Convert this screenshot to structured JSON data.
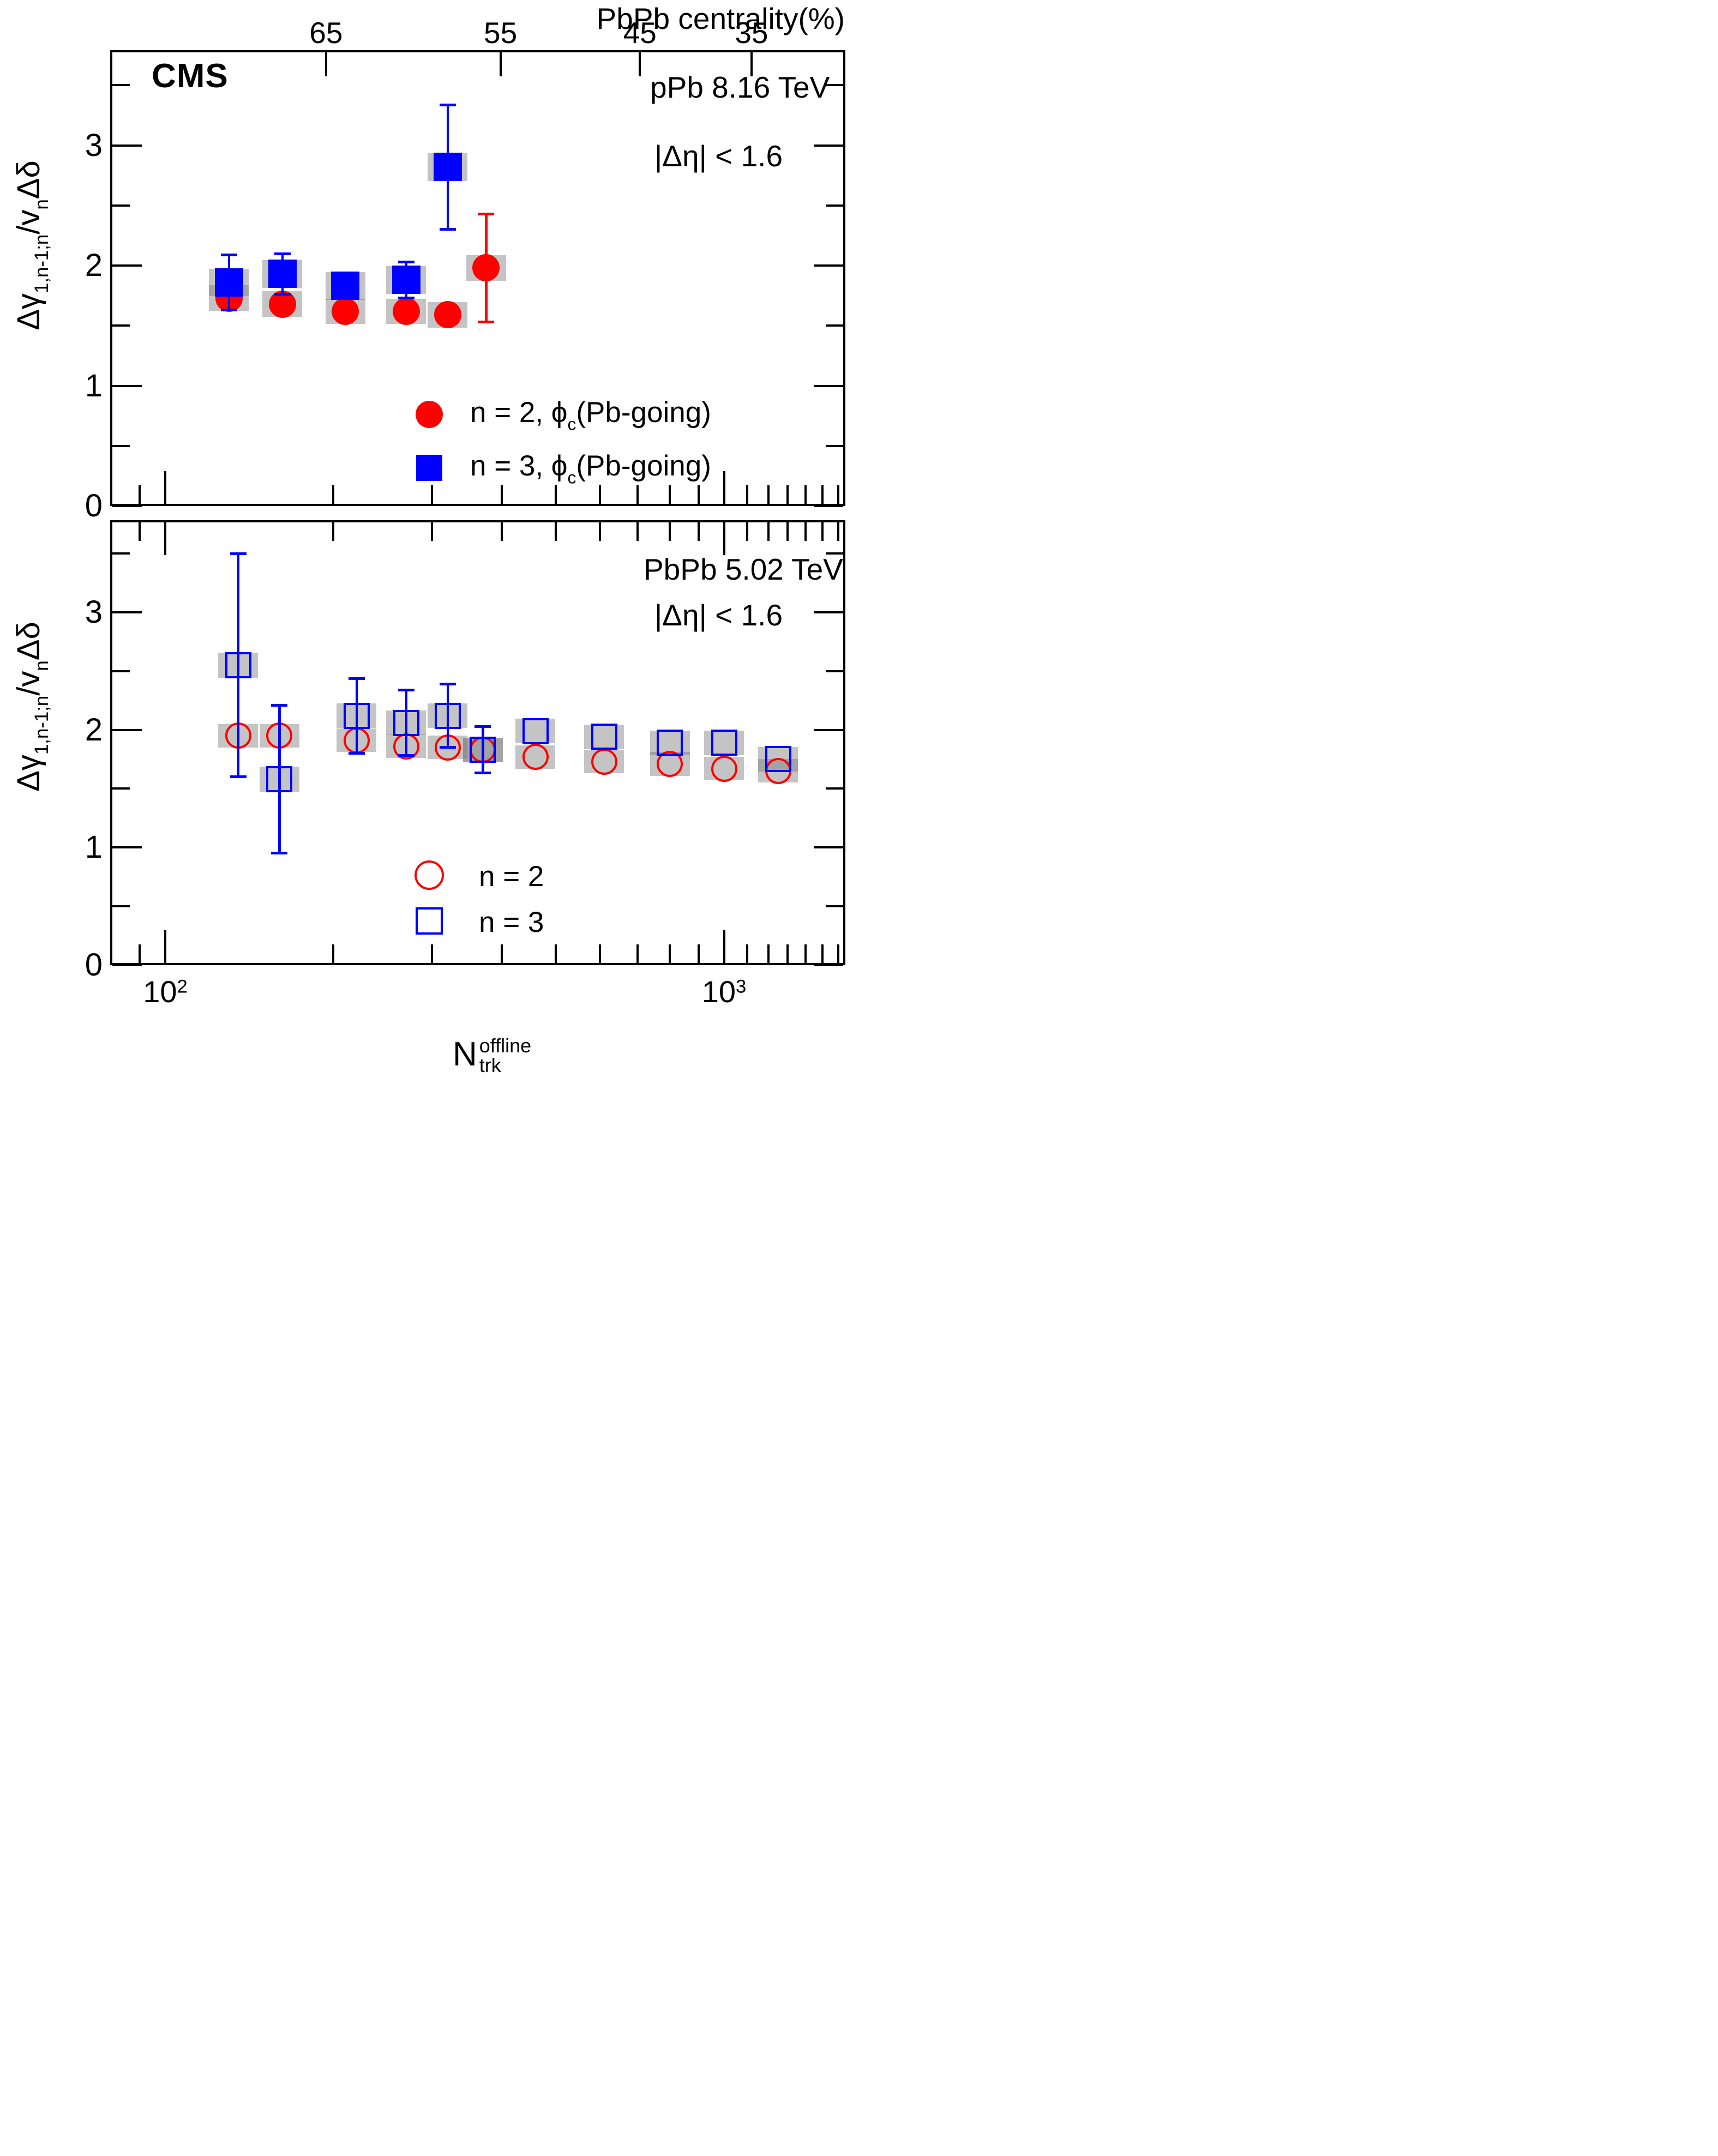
{
  "branding": {
    "experiment_label": "CMS"
  },
  "top_axis": {
    "title": "PbPb centrality(%)",
    "ticks": [
      {
        "label": "65",
        "n": 194
      },
      {
        "label": "55",
        "n": 398
      },
      {
        "label": "45",
        "n": 707
      },
      {
        "label": "35",
        "n": 1120
      }
    ]
  },
  "x_axis": {
    "title_base": "N",
    "title_sup": "offline",
    "title_sub": "trk",
    "major_ticks": [
      {
        "n": 100,
        "base": "10",
        "exp": "2"
      },
      {
        "n": 1000,
        "base": "10",
        "exp": "3"
      }
    ],
    "minor_ticks": [
      90,
      200,
      300,
      400,
      500,
      600,
      700,
      800,
      900,
      1100,
      1200,
      1300,
      1400,
      1500,
      1600
    ]
  },
  "y_axis": {
    "title_parts": {
      "p1": "Δγ",
      "sub1": "1,n-1;n",
      "p2": "/v",
      "sub2": "n",
      "p3": "Δδ"
    },
    "major_ticks": [
      0,
      1,
      2,
      3
    ],
    "minor_ticks": [
      0.5,
      1.5,
      2.5,
      3.5
    ]
  },
  "panels": [
    {
      "id": "ppb",
      "energy_label": "pPb 8.16 TeV",
      "eta_label": "|Δη| < 1.6",
      "legend": [
        {
          "marker": "circle",
          "filled": true,
          "color": "#ff0000",
          "text_pre": "n = 2, ϕ",
          "text_sub": "c",
          "text_post": "(Pb-going)"
        },
        {
          "marker": "square",
          "filled": true,
          "color": "#0000ff",
          "text_pre": "n = 3, ϕ",
          "text_sub": "c",
          "text_post": "(Pb-going)"
        }
      ]
    },
    {
      "id": "pbpb",
      "energy_label": "PbPb 5.02 TeV",
      "eta_label": "|Δη| < 1.6",
      "legend": [
        {
          "marker": "circle",
          "filled": false,
          "color": "#ff0000",
          "text": "n = 2"
        },
        {
          "marker": "square",
          "filled": false,
          "color": "#0000ff",
          "text": "n = 3"
        }
      ]
    }
  ],
  "colors": {
    "n2": "#ff0000",
    "n3": "#0000ff",
    "syst_box": "rgba(125,125,125,0.45)",
    "frame": "#000000"
  },
  "chart_data": [
    {
      "type": "scatter",
      "title": "pPb 8.16 TeV",
      "annotation": "|Δη| < 1.6",
      "x_scale": "log",
      "xlabel": "N_trk^offline",
      "ylabel": "Δγ_{1,n-1;n}/v_nΔδ",
      "xlim": [
        80,
        1650
      ],
      "ylim": [
        0,
        3.79
      ],
      "legend_position": "bottom-center-inside",
      "grid": false,
      "series": [
        {
          "name": "n = 2, ϕ_c(Pb-going)",
          "marker": "circle",
          "filled": true,
          "color": "#ff0000",
          "syst": 0.105,
          "x": [
            130,
            162,
            210,
            270,
            320,
            375
          ],
          "y": [
            1.73,
            1.68,
            1.62,
            1.62,
            1.59,
            1.98
          ],
          "yerr": [
            0,
            0,
            0,
            0,
            0,
            0.45
          ]
        },
        {
          "name": "n = 3, ϕ_c(Pb-going)",
          "marker": "square",
          "filled": true,
          "color": "#0000ff",
          "syst": 0.115,
          "x": [
            130,
            162,
            210,
            270,
            320
          ],
          "y": [
            1.86,
            1.93,
            1.83,
            1.88,
            2.82
          ],
          "yerr": [
            0.23,
            0.17,
            0,
            0.15,
            0.52
          ]
        }
      ]
    },
    {
      "type": "scatter",
      "title": "PbPb 5.02 TeV",
      "annotation": "|Δη| < 1.6",
      "x_scale": "log",
      "xlabel": "N_trk^offline",
      "ylabel": "Δγ_{1,n-1;n}/v_nΔδ",
      "xlim": [
        80,
        1650
      ],
      "ylim": [
        0,
        3.78
      ],
      "legend_position": "bottom-center-inside",
      "grid": false,
      "series": [
        {
          "name": "n = 2",
          "marker": "circle",
          "filled": false,
          "color": "#ff0000",
          "syst": 0.1,
          "x": [
            135,
            160,
            220,
            270,
            320,
            370,
            460,
            610,
            800,
            1000,
            1250
          ],
          "y": [
            1.95,
            1.95,
            1.91,
            1.86,
            1.85,
            1.83,
            1.77,
            1.73,
            1.71,
            1.67,
            1.65
          ],
          "yerr": [
            0,
            0,
            0,
            0,
            0,
            0,
            0,
            0,
            0,
            0,
            0
          ]
        },
        {
          "name": "n = 3",
          "marker": "square",
          "filled": false,
          "color": "#0000ff",
          "syst": 0.105,
          "x": [
            135,
            160,
            220,
            270,
            320,
            370,
            460,
            610,
            800,
            1000,
            1250
          ],
          "y": [
            2.55,
            1.58,
            2.12,
            2.06,
            2.12,
            1.83,
            1.99,
            1.94,
            1.89,
            1.89,
            1.75
          ],
          "yerr": [
            0.95,
            0.63,
            0.32,
            0.28,
            0.27,
            0.2,
            0,
            0,
            0,
            0,
            0
          ]
        }
      ]
    }
  ]
}
